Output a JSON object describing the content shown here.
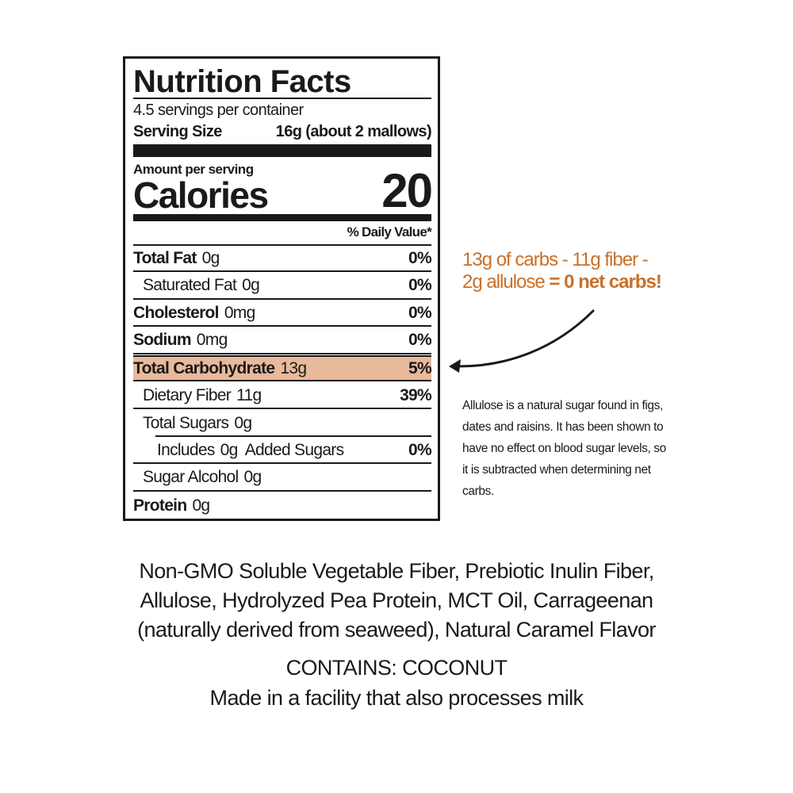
{
  "label": {
    "title": "Nutrition Facts",
    "servings": "4.5 servings per container",
    "serving_size_label": "Serving Size",
    "serving_size_value": "16g (about 2 mallows)",
    "amount_per_serving": "Amount per serving",
    "calories_label": "Calories",
    "calories_value": "20",
    "daily_value_header": "% Daily Value*",
    "rows": [
      {
        "name": "Total Fat",
        "amount": "0g",
        "dv": "0%"
      },
      {
        "name": "Saturated Fat",
        "amount": "0g",
        "dv": "0%"
      },
      {
        "name": "Cholesterol",
        "amount": "0mg",
        "dv": "0%"
      },
      {
        "name": "Sodium",
        "amount": "0mg",
        "dv": "0%"
      },
      {
        "name": "Total Carbohydrate",
        "amount": "13g",
        "dv": "5%"
      },
      {
        "name": "Dietary Fiber",
        "amount": "11g",
        "dv": "39%"
      },
      {
        "name": "Total Sugars",
        "amount": "0g",
        "dv": ""
      },
      {
        "name": "Includes",
        "amount": "0g  Added Sugars",
        "dv": "0%"
      },
      {
        "name": "Sugar Alcohol",
        "amount": "0g",
        "dv": ""
      },
      {
        "name": "Protein",
        "amount": "0g",
        "dv": ""
      }
    ]
  },
  "callout": {
    "line1": "13g of carbs - 11g fiber -",
    "line2_plain": "2g allulose ",
    "line2_bold": "= 0 net carbs!",
    "accent_color": "#c8702a",
    "highlight_color": "#e8b99b"
  },
  "note": "Allulose is a natural sugar found in figs, dates and raisins. It has been shown to have no effect on blood sugar levels, so it is subtracted when determining net carbs.",
  "ingredients": [
    "Non-GMO Soluble Vegetable Fiber, Prebiotic Inulin Fiber,",
    "Allulose, Hydrolyzed Pea Protein, MCT Oil, Carrageenan",
    "(naturally derived from seaweed), Natural Caramel Flavor"
  ],
  "contains": "CONTAINS: COCONUT",
  "facility": "Made in a facility that also processes milk"
}
